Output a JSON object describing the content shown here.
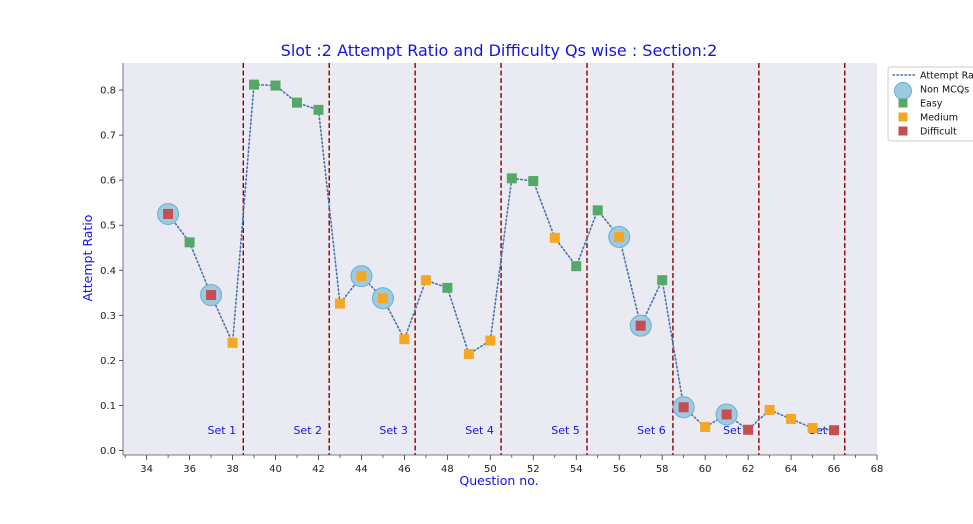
{
  "colors": {
    "plot_background": "#eaeaf2",
    "line": "#4c72b0",
    "non_mcq_fill": "#9ecae1",
    "non_mcq_edge": "#6aaecf",
    "easy": "#55a868",
    "medium": "#f5a623",
    "difficult": "#c44e52",
    "divider": "#8b0000",
    "text_accent": "#1515e0"
  },
  "chart_data": {
    "type": "scatter",
    "title": "Slot :2 Attempt Ratio and Difficulty Qs wise :   Section:2",
    "xlabel": "Question no.",
    "ylabel": "Attempt Ratio",
    "xlim": [
      32.9,
      68
    ],
    "ylim": [
      -0.01,
      0.86
    ],
    "xticks": [
      34,
      36,
      38,
      40,
      42,
      44,
      46,
      48,
      50,
      52,
      54,
      56,
      58,
      60,
      62,
      64,
      66,
      68
    ],
    "xtick_labels": [
      "34",
      "36",
      "38",
      "40",
      "42",
      "44",
      "46",
      "48",
      "50",
      "52",
      "54",
      "56",
      "58",
      "60",
      "62",
      "64",
      "66",
      "68"
    ],
    "yticks": [
      0.0,
      0.1,
      0.2,
      0.3,
      0.4,
      0.5,
      0.6,
      0.7,
      0.8
    ],
    "ytick_labels": [
      "0.0",
      "0.1",
      "0.2",
      "0.3",
      "0.4",
      "0.5",
      "0.6",
      "0.7",
      "0.8"
    ],
    "grid": false,
    "legend_placement": "outside top-right",
    "legend": [
      {
        "label": "Attempt Rat",
        "kind": "line"
      },
      {
        "label": "Non MCQs",
        "kind": "circle"
      },
      {
        "label": "Easy",
        "kind": "easy"
      },
      {
        "label": "Medium",
        "kind": "medium"
      },
      {
        "label": "Difficult",
        "kind": "difficult"
      }
    ],
    "set_dividers": [
      38.5,
      42.5,
      46.5,
      50.5,
      54.5,
      58.5,
      62.5,
      66.5
    ],
    "sets": [
      {
        "label": "Set 1",
        "x": 37.5
      },
      {
        "label": "Set 2",
        "x": 41.5
      },
      {
        "label": "Set 3",
        "x": 45.5
      },
      {
        "label": "Set 4",
        "x": 49.5
      },
      {
        "label": "Set 5",
        "x": 53.5
      },
      {
        "label": "Set 6",
        "x": 57.5
      },
      {
        "label": "Set 7",
        "x": 61.5
      },
      {
        "label": "Set 8",
        "x": 65.5
      }
    ],
    "points": [
      {
        "x": 35,
        "y": 0.525,
        "difficulty": "difficult",
        "non_mcq": true
      },
      {
        "x": 36,
        "y": 0.462,
        "difficulty": "easy",
        "non_mcq": false
      },
      {
        "x": 37,
        "y": 0.345,
        "difficulty": "difficult",
        "non_mcq": true
      },
      {
        "x": 38,
        "y": 0.239,
        "difficulty": "medium",
        "non_mcq": false
      },
      {
        "x": 39,
        "y": 0.812,
        "difficulty": "easy",
        "non_mcq": false
      },
      {
        "x": 40,
        "y": 0.81,
        "difficulty": "easy",
        "non_mcq": false
      },
      {
        "x": 41,
        "y": 0.772,
        "difficulty": "easy",
        "non_mcq": false
      },
      {
        "x": 42,
        "y": 0.756,
        "difficulty": "easy",
        "non_mcq": false
      },
      {
        "x": 43,
        "y": 0.326,
        "difficulty": "medium",
        "non_mcq": false
      },
      {
        "x": 44,
        "y": 0.387,
        "difficulty": "medium",
        "non_mcq": true
      },
      {
        "x": 45,
        "y": 0.338,
        "difficulty": "medium",
        "non_mcq": true
      },
      {
        "x": 46,
        "y": 0.247,
        "difficulty": "medium",
        "non_mcq": false
      },
      {
        "x": 47,
        "y": 0.378,
        "difficulty": "medium",
        "non_mcq": false
      },
      {
        "x": 48,
        "y": 0.361,
        "difficulty": "easy",
        "non_mcq": false
      },
      {
        "x": 49,
        "y": 0.214,
        "difficulty": "medium",
        "non_mcq": false
      },
      {
        "x": 50,
        "y": 0.244,
        "difficulty": "medium",
        "non_mcq": false
      },
      {
        "x": 51,
        "y": 0.604,
        "difficulty": "easy",
        "non_mcq": false
      },
      {
        "x": 52,
        "y": 0.598,
        "difficulty": "easy",
        "non_mcq": false
      },
      {
        "x": 53,
        "y": 0.472,
        "difficulty": "medium",
        "non_mcq": false
      },
      {
        "x": 54,
        "y": 0.409,
        "difficulty": "easy",
        "non_mcq": false
      },
      {
        "x": 55,
        "y": 0.533,
        "difficulty": "easy",
        "non_mcq": false
      },
      {
        "x": 56,
        "y": 0.474,
        "difficulty": "medium",
        "non_mcq": true
      },
      {
        "x": 57,
        "y": 0.277,
        "difficulty": "difficult",
        "non_mcq": true
      },
      {
        "x": 58,
        "y": 0.378,
        "difficulty": "easy",
        "non_mcq": false
      },
      {
        "x": 59,
        "y": 0.096,
        "difficulty": "difficult",
        "non_mcq": true
      },
      {
        "x": 60,
        "y": 0.052,
        "difficulty": "medium",
        "non_mcq": false
      },
      {
        "x": 61,
        "y": 0.08,
        "difficulty": "difficult",
        "non_mcq": true
      },
      {
        "x": 62,
        "y": 0.046,
        "difficulty": "difficult",
        "non_mcq": false
      },
      {
        "x": 63,
        "y": 0.09,
        "difficulty": "medium",
        "non_mcq": false
      },
      {
        "x": 64,
        "y": 0.07,
        "difficulty": "medium",
        "non_mcq": false
      },
      {
        "x": 65,
        "y": 0.05,
        "difficulty": "medium",
        "non_mcq": false
      },
      {
        "x": 66,
        "y": 0.045,
        "difficulty": "difficult",
        "non_mcq": false
      }
    ]
  }
}
